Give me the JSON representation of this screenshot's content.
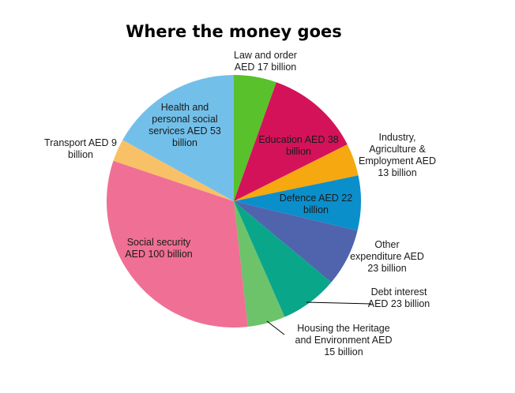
{
  "chart_data": {
    "type": "pie",
    "title": "Where the money goes",
    "unit": "AED billion",
    "start_angle_deg": 0,
    "direction": "clockwise",
    "slices": [
      {
        "label": [
          "Law and order",
          "AED 17 billion"
        ],
        "value": 17,
        "color": "#59c12c"
      },
      {
        "label": [
          "Education AED 38",
          "billion"
        ],
        "value": 38,
        "color": "#d4125a"
      },
      {
        "label": [
          "Industry,",
          "Agriculture &",
          "Employment AED",
          "13 billion"
        ],
        "value": 13,
        "color": "#f5a80f"
      },
      {
        "label": [
          "Defence AED 22",
          "billion"
        ],
        "value": 22,
        "color": "#0b8fcb"
      },
      {
        "label": [
          "Other",
          "expenditure AED",
          "23 billion"
        ],
        "value": 23,
        "color": "#4f64ad"
      },
      {
        "label": [
          "Debt interest",
          "AED 23 billion"
        ],
        "value": 23,
        "color": "#0aa68a"
      },
      {
        "label": [
          "Housing the Heritage",
          "and Environment AED",
          "15 billion"
        ],
        "value": 15,
        "color": "#6cc36a"
      },
      {
        "label": [
          "Social security",
          "AED 100 billion"
        ],
        "value": 100,
        "color": "#f06f94"
      },
      {
        "label": [
          "Transport AED 9",
          "billion"
        ],
        "value": 9,
        "color": "#f9c167"
      },
      {
        "label": [
          "Health and",
          "personal social",
          "services AED 53",
          "billion"
        ],
        "value": 53,
        "color": "#72c0ea"
      }
    ]
  }
}
